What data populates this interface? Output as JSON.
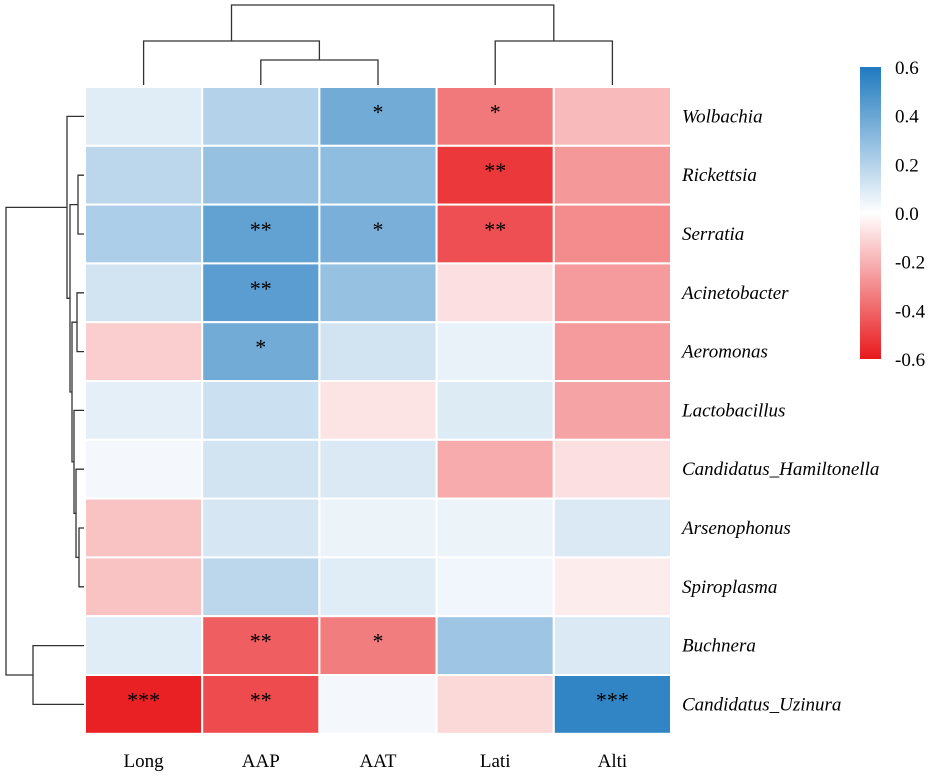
{
  "chart_data": {
    "type": "heatmap",
    "title": "",
    "columns": [
      "Long",
      "AAP",
      "AAT",
      "Lati",
      "Alti"
    ],
    "rows": [
      "Wolbachia",
      "Rickettsia",
      "Serratia",
      "Acinetobacter",
      "Aeromonas",
      "Lactobacillus",
      "Candidatus_Hamiltonella",
      "Arsenophonus",
      "Spiroplasma",
      "Buchnera",
      "Candidatus_Uzinura"
    ],
    "values": [
      [
        0.08,
        0.2,
        0.38,
        -0.35,
        -0.18
      ],
      [
        0.18,
        0.28,
        0.3,
        -0.52,
        -0.27
      ],
      [
        0.22,
        0.42,
        0.36,
        -0.46,
        -0.3
      ],
      [
        0.12,
        0.44,
        0.28,
        -0.08,
        -0.26
      ],
      [
        -0.13,
        0.38,
        0.12,
        0.06,
        -0.26
      ],
      [
        0.07,
        0.14,
        -0.07,
        0.09,
        -0.24
      ],
      [
        0.03,
        0.12,
        0.1,
        -0.22,
        -0.08
      ],
      [
        -0.16,
        0.11,
        0.05,
        0.05,
        0.1
      ],
      [
        -0.16,
        0.18,
        0.08,
        0.04,
        -0.05
      ],
      [
        0.08,
        -0.42,
        -0.34,
        0.26,
        0.1
      ],
      [
        -0.58,
        -0.47,
        0.03,
        -0.1,
        0.55
      ]
    ],
    "significance": [
      [
        "",
        "",
        "*",
        "*",
        ""
      ],
      [
        "",
        "",
        "",
        "**",
        ""
      ],
      [
        "",
        "**",
        "*",
        "**",
        ""
      ],
      [
        "",
        "**",
        "",
        "",
        ""
      ],
      [
        "",
        "*",
        "",
        "",
        ""
      ],
      [
        "",
        "",
        "",
        "",
        ""
      ],
      [
        "",
        "",
        "",
        "",
        ""
      ],
      [
        "",
        "",
        "",
        "",
        ""
      ],
      [
        "",
        "",
        "",
        "",
        ""
      ],
      [
        "",
        "**",
        "*",
        "",
        ""
      ],
      [
        "***",
        "**",
        "",
        "",
        "***"
      ]
    ],
    "colorbar": {
      "range": [
        -0.6,
        0.6
      ],
      "ticks": [
        "0.6",
        "0.4",
        "0.2",
        "0.0",
        "-0.2",
        "-0.4",
        "-0.6"
      ],
      "colors": {
        "low": "#e8191d",
        "mid": "#ffffff",
        "high": "#1f7abf"
      }
    },
    "dendrogram": {
      "rows": true,
      "columns": true
    }
  }
}
